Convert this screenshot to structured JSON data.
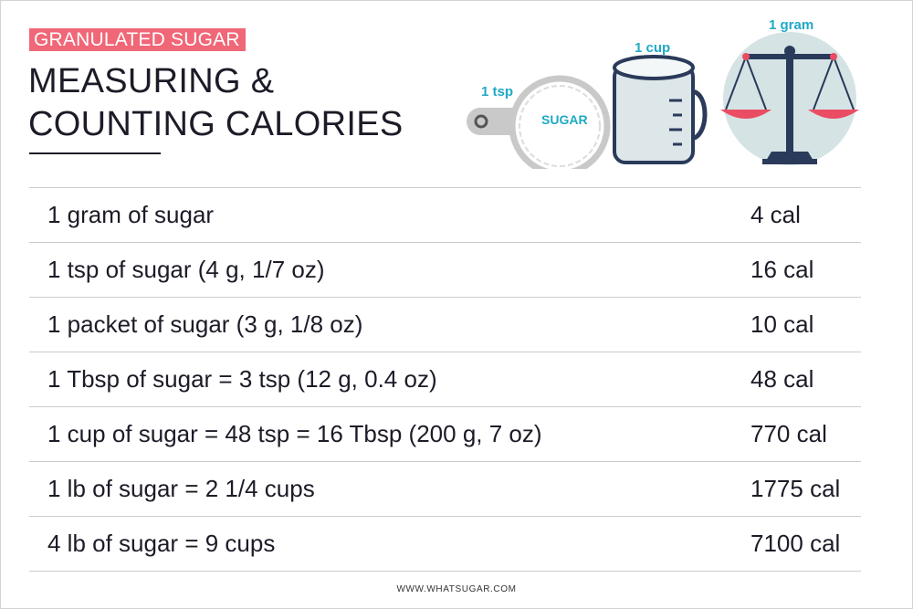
{
  "header": {
    "tag": "GRANULATED SUGAR",
    "title_line1": "MEASURING &",
    "title_line2": "COUNTING CALORIES"
  },
  "illustrations": {
    "tsp_label": "1 tsp",
    "tsp_text": "SUGAR",
    "cup_label": "1 cup",
    "scale_label": "1 gram"
  },
  "table": {
    "rows": [
      {
        "label": "1 gram of sugar",
        "value": "4 cal"
      },
      {
        "label": "1 tsp of sugar  (4 g, 1/7 oz)",
        "value": "16 cal"
      },
      {
        "label": "1 packet of sugar  (3 g, 1/8 oz)",
        "value": "10 cal"
      },
      {
        "label": "1 Tbsp of sugar = 3 tsp  (12 g, 0.4 oz)",
        "value": "48 cal"
      },
      {
        "label": "1 cup of sugar = 48 tsp = 16 Tbsp  (200 g, 7 oz)",
        "value": "770 cal"
      },
      {
        "label": "1 lb of sugar = 2 1/4 cups",
        "value": "1775 cal"
      },
      {
        "label": "4 lb of sugar = 9 cups",
        "value": "7100 cal"
      }
    ]
  },
  "footer": {
    "url": "WWW.WHATSUGAR.COM"
  },
  "colors": {
    "accent": "#f06777",
    "label_blue": "#1fa9c6",
    "ink": "#1c1c28",
    "scale_navy": "#2a3a5a"
  }
}
